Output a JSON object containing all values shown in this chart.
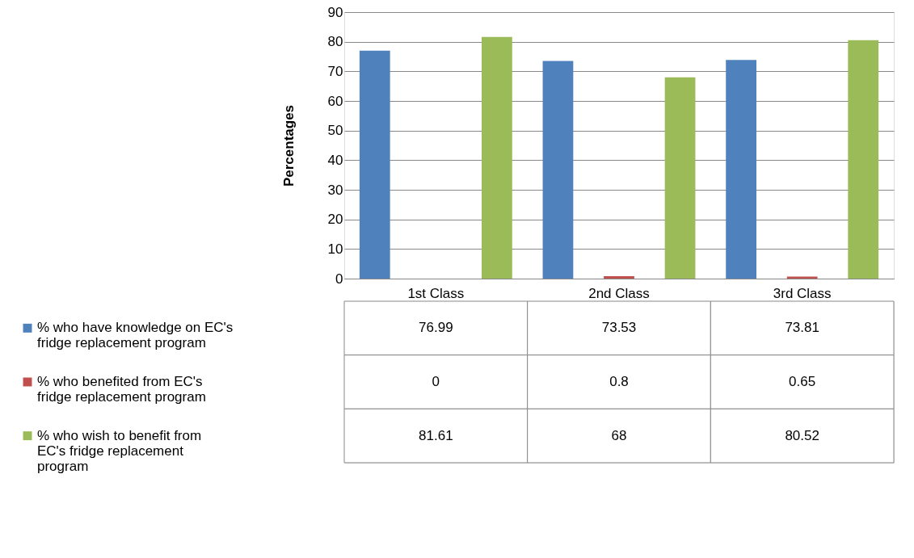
{
  "chart_data": {
    "type": "bar",
    "ylabel": "Percentages",
    "categories": [
      "1st Class",
      "2nd Class",
      "3rd Class"
    ],
    "series": [
      {
        "name": "% who have knowledge on EC's fridge replacement program",
        "color": "#4f81bd",
        "values": [
          76.99,
          73.53,
          73.81
        ]
      },
      {
        "name": "% who benefited from EC's fridge replacement program",
        "color": "#c0504d",
        "values": [
          0,
          0.8,
          0.65
        ]
      },
      {
        "name": "% who wish to benefit from EC's fridge replacement program",
        "color": "#9bbb59",
        "values": [
          81.61,
          68,
          80.52
        ]
      }
    ],
    "ylim": [
      0,
      90
    ],
    "yticks": [
      0,
      10,
      20,
      30,
      40,
      50,
      60,
      70,
      80,
      90
    ],
    "grid": "y",
    "data_labels": true,
    "legend": "bottom"
  }
}
